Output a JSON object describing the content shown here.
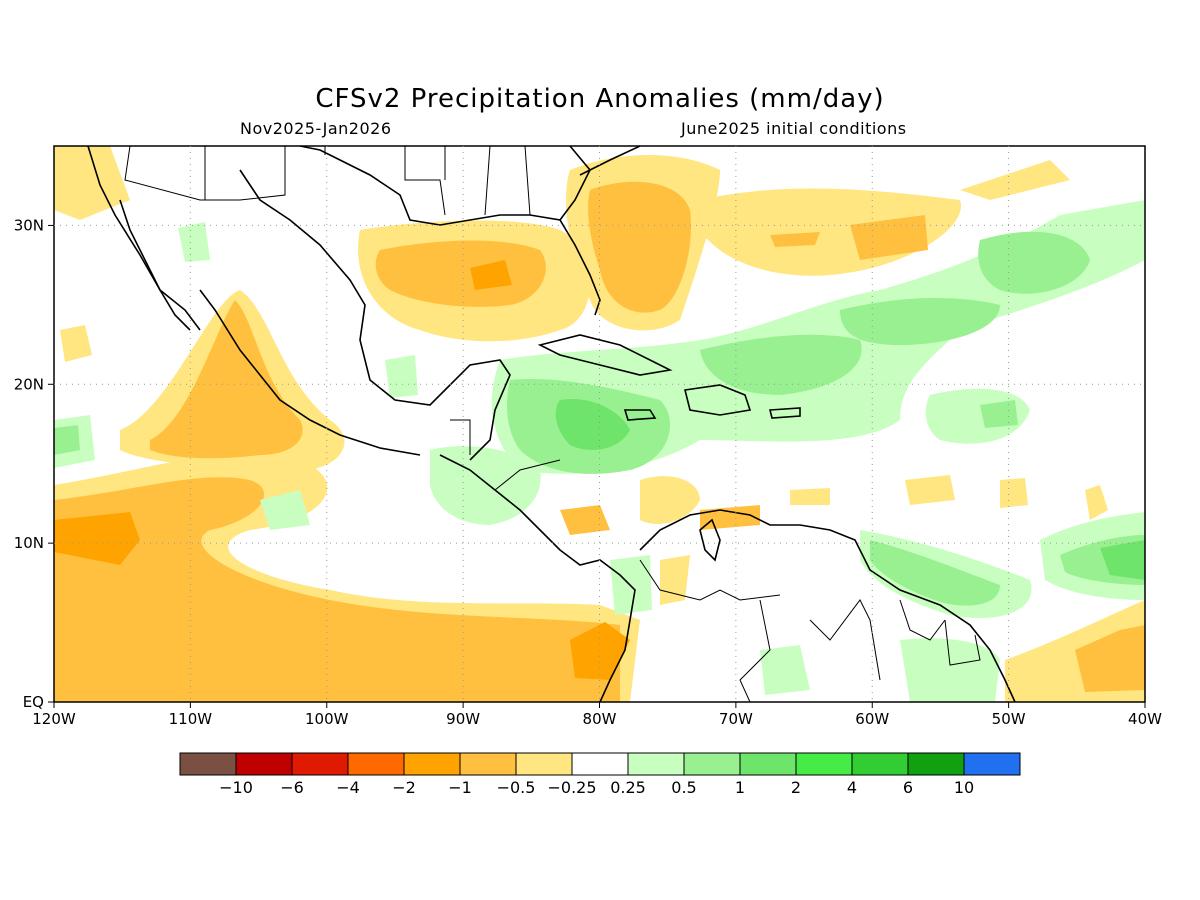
{
  "title": "CFSv2 Precipitation Anomalies (mm/day)",
  "subtitle_left": "Nov2025-Jan2026",
  "subtitle_right": "June2025 initial conditions",
  "map": {
    "lon_range": [
      -120,
      -40
    ],
    "lat_range": [
      0,
      35
    ],
    "lon_ticks": [
      {
        "value": -120,
        "label": "120W"
      },
      {
        "value": -110,
        "label": "110W"
      },
      {
        "value": -100,
        "label": "100W"
      },
      {
        "value": -90,
        "label": "90W"
      },
      {
        "value": -80,
        "label": "80W"
      },
      {
        "value": -70,
        "label": "70W"
      },
      {
        "value": -60,
        "label": "60W"
      },
      {
        "value": -50,
        "label": "50W"
      },
      {
        "value": -40,
        "label": "40W"
      }
    ],
    "lat_ticks": [
      {
        "value": 0,
        "label": "EQ"
      },
      {
        "value": 10,
        "label": "10N"
      },
      {
        "value": 20,
        "label": "20N"
      },
      {
        "value": 30,
        "label": "30N"
      }
    ]
  },
  "colorbar": {
    "colors": [
      "#7a5042",
      "#c00000",
      "#e01a00",
      "#ff6a00",
      "#ffa300",
      "#ffc040",
      "#ffe680",
      "#ffffff",
      "#c8ffc0",
      "#98f090",
      "#6ee46a",
      "#46eb46",
      "#32cd32",
      "#10a010",
      "#2070f0"
    ],
    "labels": [
      "−10",
      "−6",
      "−4",
      "−2",
      "−1",
      "−0.5",
      "−0.25",
      "0.25",
      "0.5",
      "1",
      "2",
      "4",
      "6",
      "10"
    ]
  }
}
